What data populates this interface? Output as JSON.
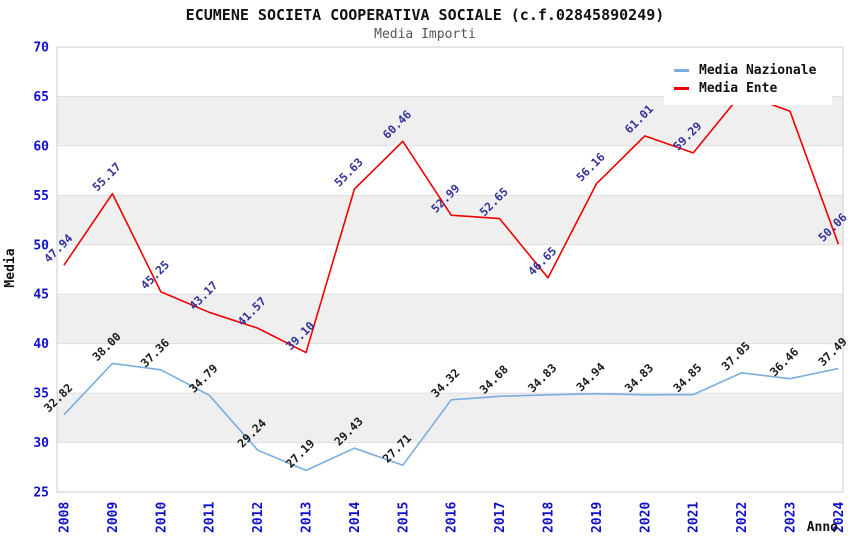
{
  "header": {
    "title": "ECUMENE SOCIETA COOPERATIVA SOCIALE (c.f.02845890249)",
    "subtitle": "Media Importi"
  },
  "chart_data": {
    "type": "line",
    "title": "ECUMENE SOCIETA COOPERATIVA SOCIALE (c.f.02845890249)",
    "subtitle": "Media Importi",
    "xlabel": "Anno",
    "ylabel": "Media",
    "ylim": [
      25,
      70
    ],
    "yticks": [
      25,
      30,
      35,
      40,
      45,
      50,
      55,
      60,
      65,
      70
    ],
    "grid_bands": [
      [
        30,
        35
      ],
      [
        40,
        45
      ],
      [
        50,
        55
      ],
      [
        60,
        65
      ]
    ],
    "legend_position": "top-right",
    "categories": [
      "2008",
      "2009",
      "2010",
      "2011",
      "2012",
      "2013",
      "2014",
      "2015",
      "2016",
      "2017",
      "2018",
      "2019",
      "2020",
      "2021",
      "2022",
      "2023",
      "2024"
    ],
    "series": [
      {
        "name": "Media Nazionale",
        "color": "#79aede",
        "label_color": "#1a1a1a",
        "values": [
          32.82,
          38.0,
          37.36,
          34.79,
          29.24,
          27.19,
          29.43,
          27.71,
          34.32,
          34.68,
          34.83,
          34.94,
          34.83,
          34.85,
          37.05,
          36.46,
          37.49
        ],
        "labels": [
          "32.82",
          "38.00",
          "37.36",
          "34.79",
          "29.24",
          "27.19",
          "29.43",
          "27.71",
          "34.32",
          "34.68",
          "34.83",
          "34.94",
          "34.83",
          "34.85",
          "37.05",
          "36.46",
          "37.49"
        ]
      },
      {
        "name": "Media Ente",
        "color": "#ee0000",
        "label_color": "#333399",
        "values": [
          47.94,
          55.17,
          45.25,
          43.17,
          41.57,
          39.1,
          55.63,
          60.46,
          52.99,
          52.65,
          46.65,
          56.16,
          61.01,
          59.29,
          65.3,
          63.5,
          50.06
        ],
        "labels": [
          "47.94",
          "55.17",
          "45.25",
          "43.17",
          "41.57",
          "39.10",
          "55.63",
          "60.46",
          "52.99",
          "52.65",
          "46.65",
          "56.16",
          "61.01",
          "59.29",
          null,
          null,
          "50.06"
        ]
      }
    ]
  },
  "colors": {
    "tick_label": "#1111cc",
    "band": "#efefef",
    "gridline": "#dfdfdf",
    "plot_border": "#cccccc",
    "axis_label": "#111111"
  }
}
